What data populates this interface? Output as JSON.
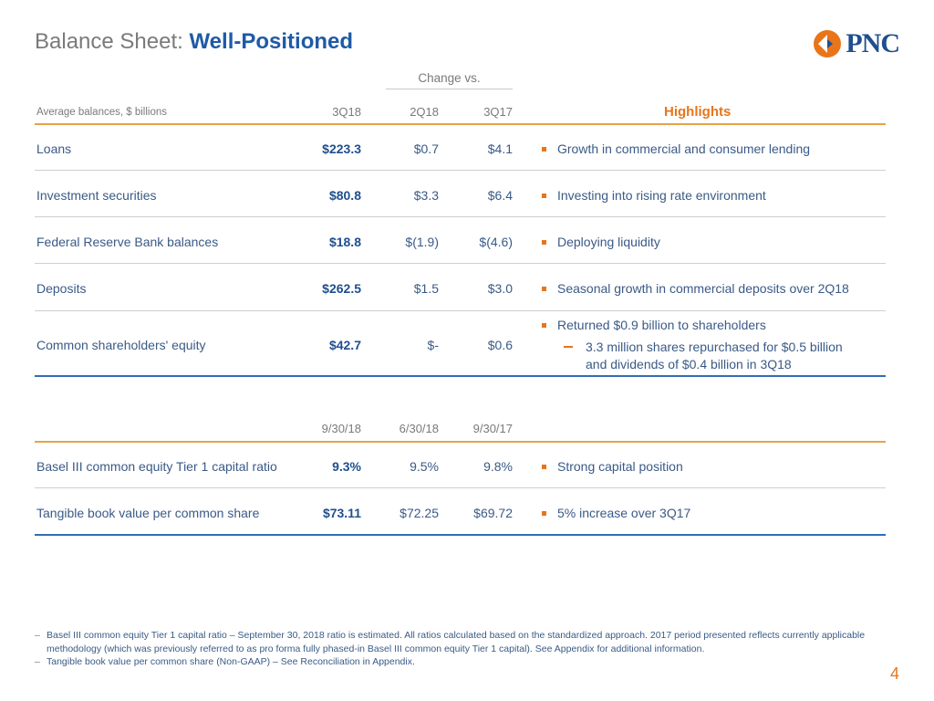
{
  "header": {
    "title_plain": "Balance Sheet: ",
    "title_strong": "Well-Positioned",
    "logo_text": "PNC"
  },
  "table1": {
    "change_vs": "Change vs.",
    "col_label": "Average balances, $ billions",
    "col1": "3Q18",
    "col2": "2Q18",
    "col3": "3Q17",
    "highlights": "Highlights",
    "rows": [
      {
        "label": "Loans",
        "v1": "$223.3",
        "v2": "$0.7",
        "v3": "$4.1",
        "hl": "Growth in commercial and consumer lending"
      },
      {
        "label": "Investment securities",
        "v1": "$80.8",
        "v2": "$3.3",
        "v3": "$6.4",
        "hl": "Investing into rising rate environment"
      },
      {
        "label": "Federal Reserve Bank balances",
        "v1": "$18.8",
        "v2": "$(1.9)",
        "v3": "$(4.6)",
        "hl": "Deploying liquidity"
      },
      {
        "label": "Deposits",
        "v1": "$262.5",
        "v2": "$1.5",
        "v3": "$3.0",
        "hl": "Seasonal growth in commercial deposits over 2Q18"
      },
      {
        "label": "Common shareholders' equity",
        "v1": "$42.7",
        "v2": "$-",
        "v3": "$0.6",
        "hl": "Returned $0.9 billion to shareholders",
        "sub1": "3.3 million shares repurchased for $0.5 billion",
        "sub2": "and dividends of $0.4 billion in 3Q18"
      }
    ]
  },
  "table2": {
    "col1": "9/30/18",
    "col2": "6/30/18",
    "col3": "9/30/17",
    "rows": [
      {
        "label": "Basel III common equity Tier 1 capital ratio",
        "v1": "9.3%",
        "v2": "9.5%",
        "v3": "9.8%",
        "hl": "Strong capital position"
      },
      {
        "label": "Tangible book value per common share",
        "v1": "$73.11",
        "v2": "$72.25",
        "v3": "$69.72",
        "hl": "5% increase over 3Q17"
      }
    ]
  },
  "footnotes": [
    "Basel III common equity Tier 1 capital ratio – September 30, 2018 ratio is estimated.  All ratios calculated based on the standardized approach. 2017 period presented reflects currently applicable methodology (which was previously referred to as pro forma fully phased-in Basel III common equity Tier 1 capital). See Appendix for additional information.",
    "Tangible book value per common share (Non-GAAP) – See Reconciliation in Appendix."
  ],
  "page_number": "4",
  "colors": {
    "orange": "#e8751a",
    "navy": "#1f4f8e",
    "blue_rule": "#2f6fb6"
  }
}
